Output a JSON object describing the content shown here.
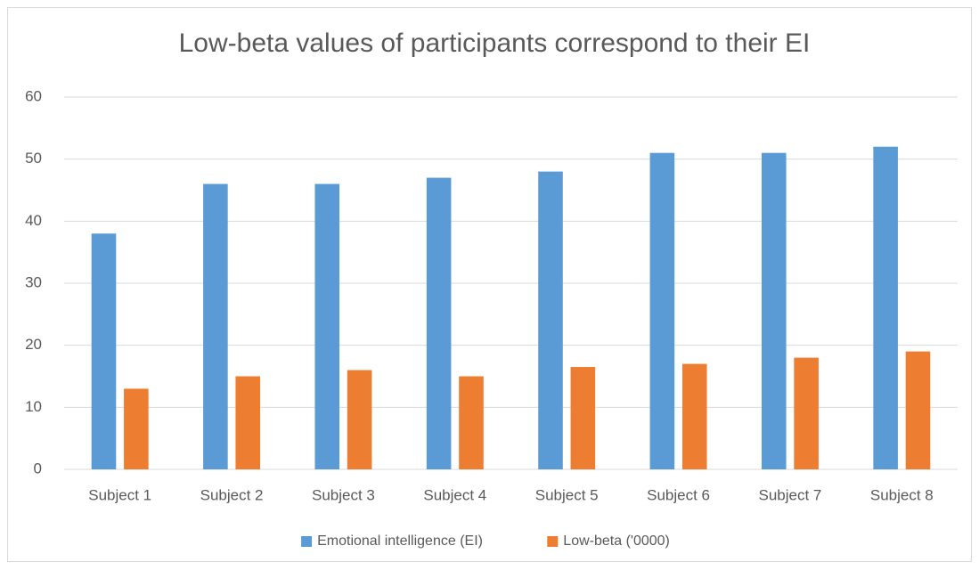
{
  "chart_data": {
    "type": "bar",
    "title": "Low-beta values of participants correspond to their EI",
    "categories": [
      "Subject 1",
      "Subject 2",
      "Subject 3",
      "Subject 4",
      "Subject 5",
      "Subject 6",
      "Subject 7",
      "Subject 8"
    ],
    "series": [
      {
        "name": "Emotional intelligence (EI)",
        "color": "#5b9bd5",
        "values": [
          38,
          46,
          46,
          47,
          48,
          51,
          51,
          52
        ]
      },
      {
        "name": "Low-beta ('0000)",
        "color": "#ed7d31",
        "values": [
          13,
          15,
          16,
          15,
          16.5,
          17,
          18,
          19
        ]
      }
    ],
    "ylim": [
      0,
      60
    ],
    "yticks": [
      0,
      10,
      20,
      30,
      40,
      50,
      60
    ],
    "grid": true,
    "legend": "bottom"
  }
}
